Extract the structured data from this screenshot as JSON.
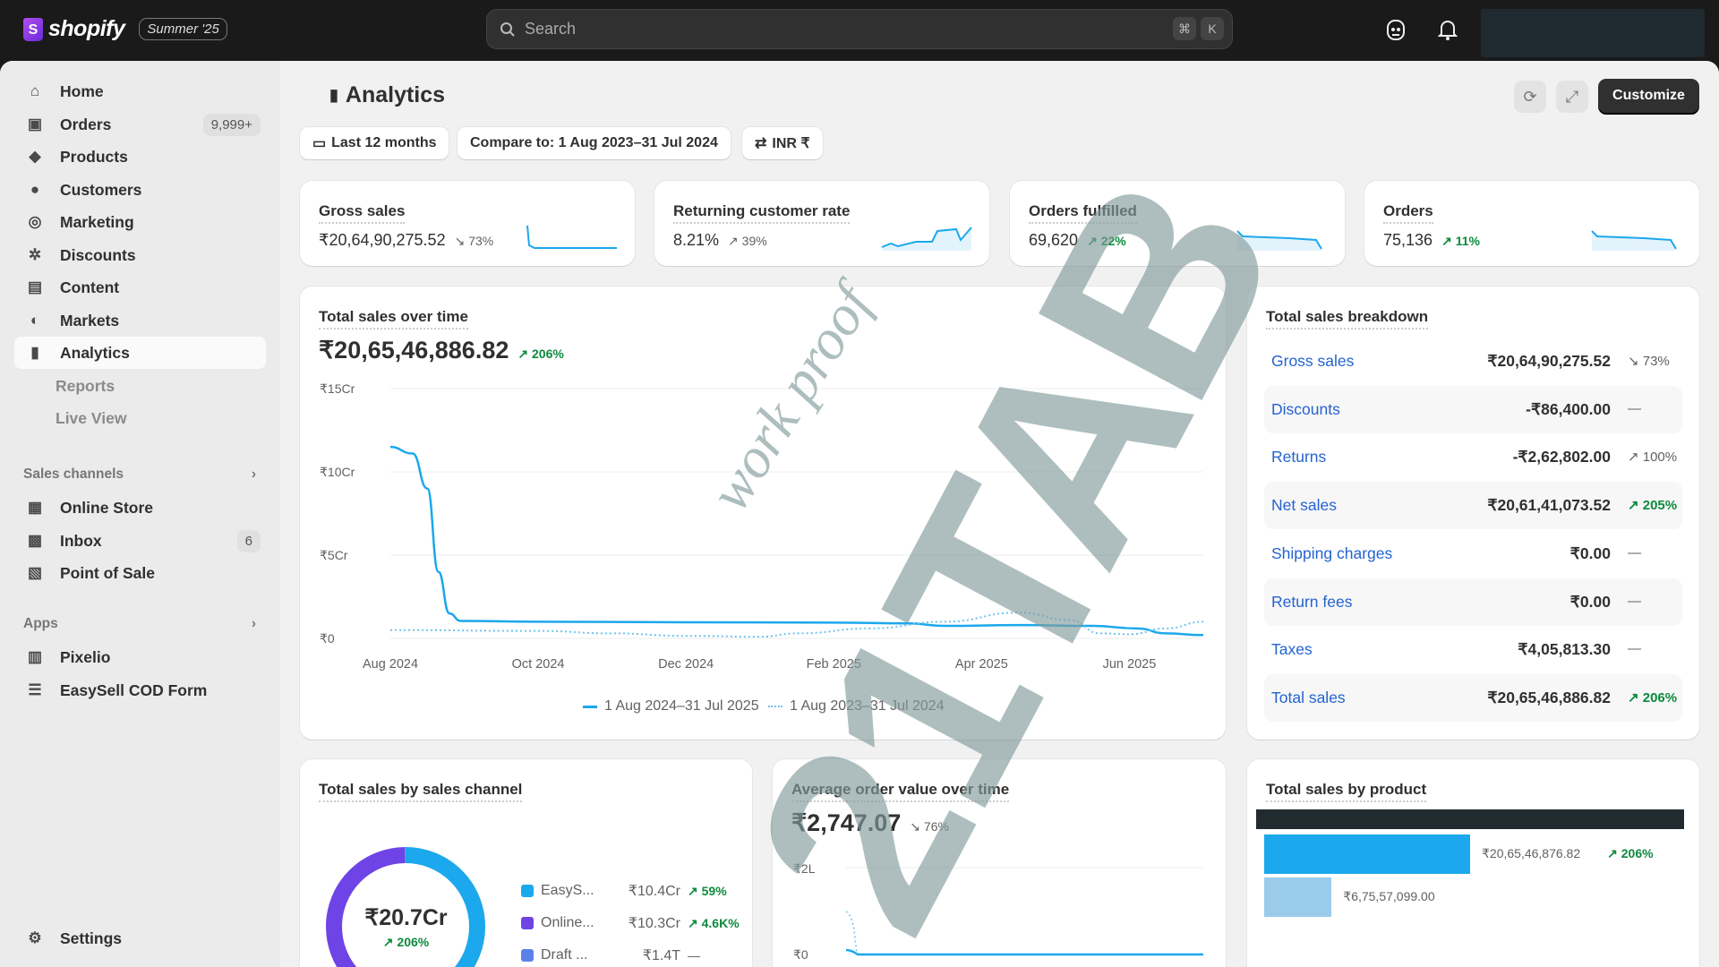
{
  "topbar": {
    "brand": "shopify",
    "edition": "Summer '25",
    "search_placeholder": "Search",
    "kbd1": "⌘",
    "kbd2": "K"
  },
  "sidebar": {
    "items": [
      {
        "label": "Home",
        "icon": "home-icon"
      },
      {
        "label": "Orders",
        "icon": "orders-icon",
        "count": "9,999+"
      },
      {
        "label": "Products",
        "icon": "tag-icon"
      },
      {
        "label": "Customers",
        "icon": "person-icon"
      },
      {
        "label": "Marketing",
        "icon": "target-icon"
      },
      {
        "label": "Discounts",
        "icon": "discount-icon"
      },
      {
        "label": "Content",
        "icon": "content-icon"
      },
      {
        "label": "Markets",
        "icon": "globe-icon"
      },
      {
        "label": "Analytics",
        "icon": "bar-chart-icon"
      }
    ],
    "sub_items": [
      "Reports",
      "Live View"
    ],
    "sales_channels_label": "Sales channels",
    "channels": [
      {
        "label": "Online Store"
      },
      {
        "label": "Inbox",
        "count": "6"
      },
      {
        "label": "Point of Sale"
      }
    ],
    "apps_label": "Apps",
    "apps": [
      {
        "label": "Pixelio"
      },
      {
        "label": "EasySell COD Form"
      }
    ],
    "settings": "Settings"
  },
  "page": {
    "title": "Analytics",
    "date_range": "Last 12 months",
    "compare": "Compare to: 1 Aug 2023–31 Jul 2024",
    "currency": "INR ₹",
    "customize": "Customize"
  },
  "kpis": [
    {
      "title": "Gross sales",
      "value": "₹20,64,90,275.52",
      "change": "73%",
      "dir": "down"
    },
    {
      "title": "Returning customer rate",
      "value": "8.21%",
      "change": "39%",
      "dir": "up-gray"
    },
    {
      "title": "Orders fulfilled",
      "value": "69,620",
      "change": "22%",
      "dir": "up"
    },
    {
      "title": "Orders",
      "value": "75,136",
      "change": "11%",
      "dir": "up"
    }
  ],
  "total_sales": {
    "title": "Total sales over time",
    "value": "₹20,65,46,886.82",
    "change": "206%"
  },
  "chart_data": {
    "type": "line",
    "title": "Total sales over time",
    "ylabel": "",
    "xlabel": "",
    "ylim": [
      0,
      15
    ],
    "y_unit": "Cr",
    "y_ticks": [
      "₹0",
      "₹5Cr",
      "₹10Cr",
      "₹15Cr"
    ],
    "y_tick_values": [
      0,
      5,
      10,
      15
    ],
    "x_ticks": [
      "Aug 2024",
      "Oct 2024",
      "Dec 2024",
      "Feb 2025",
      "Apr 2025",
      "Jun 2025"
    ],
    "x_tick_values": [
      0,
      2,
      4,
      6,
      8,
      10
    ],
    "xlim": [
      0,
      11
    ],
    "series": [
      {
        "name": "1 Aug 2024–31 Jul 2025",
        "style": "solid",
        "color": "#1BA8EC",
        "x": [
          0,
          0.3,
          0.5,
          0.65,
          0.8,
          0.95,
          2,
          4,
          6,
          7,
          7.5,
          8.5,
          9.5,
          10.1,
          10.5,
          11
        ],
        "y": [
          11.5,
          11.1,
          9,
          4,
          1.5,
          1.05,
          1.0,
          0.97,
          0.95,
          0.9,
          0.75,
          0.8,
          0.75,
          0.6,
          0.3,
          0.2
        ]
      },
      {
        "name": "1 Aug 2023–31 Jul 2024",
        "style": "dotted",
        "color": "#6ec3ee",
        "x": [
          0,
          2,
          3,
          4,
          5,
          5.5,
          6.5,
          7.5,
          8.5,
          9.2,
          9.6,
          10,
          10.5,
          11
        ],
        "y": [
          0.5,
          0.45,
          0.3,
          0.15,
          0.1,
          0.3,
          0.6,
          1.0,
          1.55,
          1.1,
          0.3,
          0.25,
          0.6,
          1.0
        ]
      }
    ]
  },
  "breakdown": {
    "title": "Total sales breakdown",
    "rows": [
      {
        "label": "Gross sales",
        "value": "₹20,64,90,275.52",
        "change": "↘ 73%",
        "dir": "down"
      },
      {
        "label": "Discounts",
        "value": "-₹86,400.00",
        "change": "—",
        "dir": "none"
      },
      {
        "label": "Returns",
        "value": "-₹2,62,802.00",
        "change": "↗ 100%",
        "dir": "down"
      },
      {
        "label": "Net sales",
        "value": "₹20,61,41,073.52",
        "change": "↗ 205%",
        "dir": "up"
      },
      {
        "label": "Shipping charges",
        "value": "₹0.00",
        "change": "—",
        "dir": "none"
      },
      {
        "label": "Return fees",
        "value": "₹0.00",
        "change": "—",
        "dir": "none"
      },
      {
        "label": "Taxes",
        "value": "₹4,05,813.30",
        "change": "—",
        "dir": "none"
      },
      {
        "label": "Total sales",
        "value": "₹20,65,46,886.82",
        "change": "↗ 206%",
        "dir": "up"
      }
    ]
  },
  "by_channel": {
    "title": "Total sales by sales channel",
    "center_value": "₹20.7Cr",
    "center_change": "206%",
    "items": [
      {
        "label": "EasyS...",
        "value": "₹10.4Cr",
        "change": "59%",
        "color": "#1BA8EC",
        "amount": 10.4
      },
      {
        "label": "Online...",
        "value": "₹10.3Cr",
        "change": "4.6K%",
        "color": "#6E44E6",
        "amount": 10.3
      },
      {
        "label": "Draft ...",
        "value": "₹1.4T",
        "change": "—",
        "color": "#5B82E8",
        "amount": 0.00014
      }
    ]
  },
  "aov": {
    "title": "Average order value over time",
    "value": "₹2,747.07",
    "change": "76%",
    "y_top": "₹2L",
    "y_bottom": "₹0"
  },
  "by_product": {
    "title": "Total sales by product",
    "bars": [
      {
        "value": "₹20,65,46,876.82",
        "change": "206%",
        "amount": 20.65,
        "color": "#1BA8EC"
      },
      {
        "value": "₹6,75,57,099.00",
        "amount": 6.76,
        "color": "#9ACBEA"
      }
    ]
  },
  "watermark": {
    "big": "21TAB",
    "small": "work proof"
  }
}
